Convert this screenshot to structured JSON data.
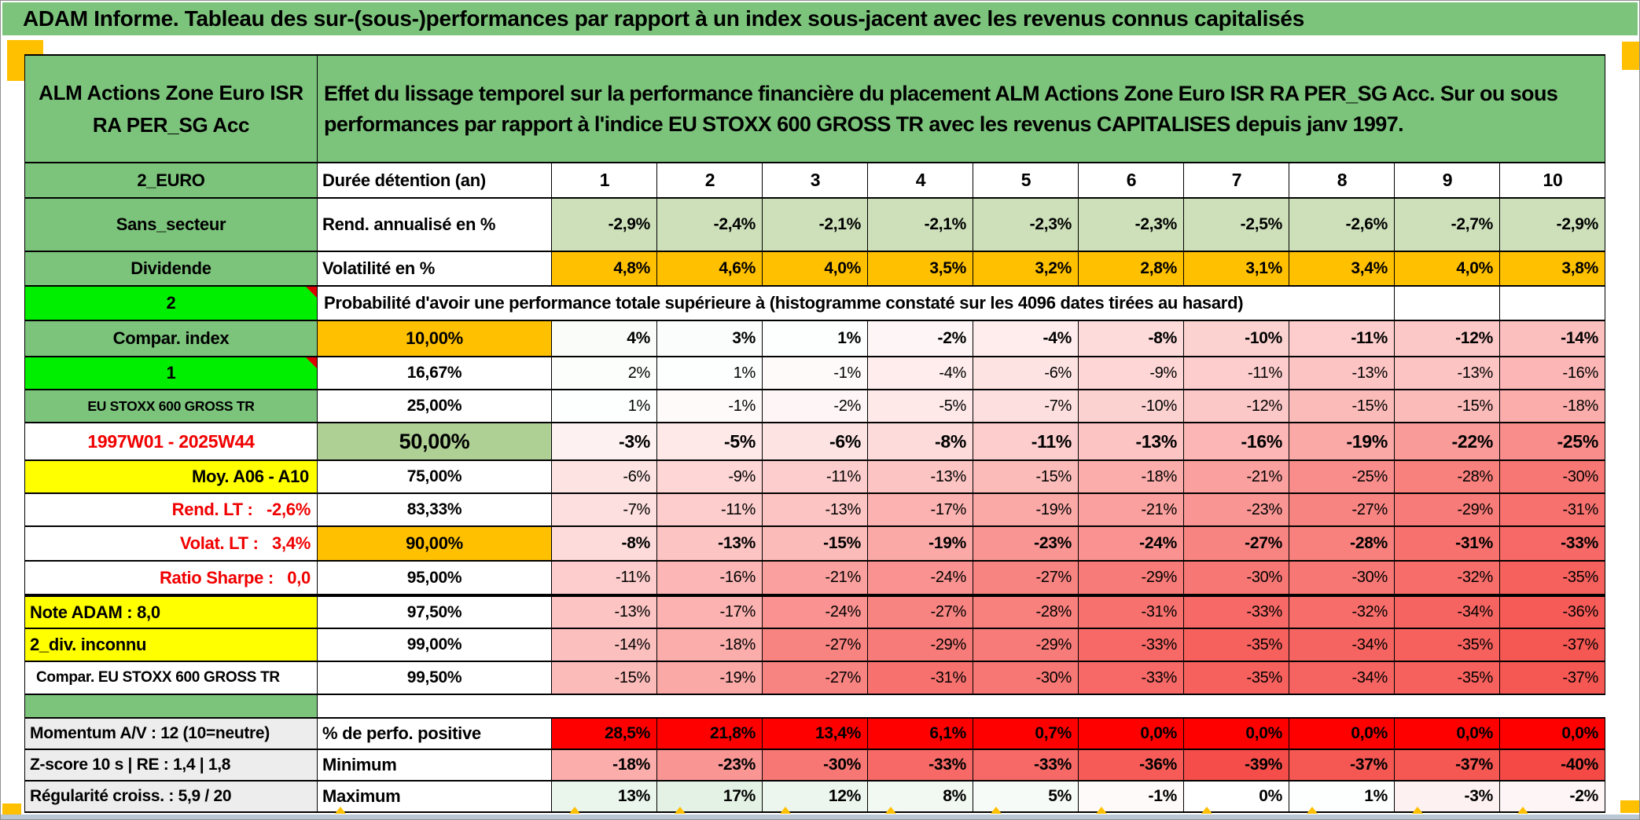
{
  "title_bar": {
    "text": "ADAM Informe. Tableau des sur-(sous-)performances par rapport à un index sous-jacent avec les revenus connus capitalisés"
  },
  "header": {
    "fund_name": "ALM Actions Zone Euro ISR RA PER_SG Acc",
    "description": "Effet du lissage temporel sur la performance financière du placement ALM Actions Zone Euro ISR RA PER_SG Acc. Sur ou sous performances par rapport à l'indice EU STOXX 600 GROSS TR avec les revenus CAPITALISES depuis janv 1997."
  },
  "colors": {
    "header_green": "#7cc47c",
    "bright_green": "#00ef00",
    "light_green_fill": "#cde0ba",
    "p50_green_fill": "#afd095",
    "orange": "#ffc000",
    "yellow": "#ffff00",
    "label_gray": "#ededed",
    "red_fill": "#fe0000",
    "red_text": "#f00000",
    "positive_scale_max": "#dff0e2",
    "negative_scale_max": "#f4403c"
  },
  "table": {
    "rows": [
      {
        "name": "durations",
        "left": {
          "text": "2_EURO",
          "style": "green"
        },
        "mid": {
          "text": "Durée détention (an)",
          "style": "label"
        },
        "cells": [
          "1",
          "2",
          "3",
          "4",
          "5",
          "6",
          "7",
          "8",
          "9",
          "10"
        ],
        "mode": "head"
      },
      {
        "name": "annual-return",
        "left": {
          "text": "Sans_secteur",
          "style": "green"
        },
        "mid": {
          "text": "Rend. annualisé en %",
          "style": "label"
        },
        "cells": [
          "-2,9%",
          "-2,4%",
          "-2,1%",
          "-2,1%",
          "-2,3%",
          "-2,3%",
          "-2,5%",
          "-2,6%",
          "-2,7%",
          "-2,9%"
        ],
        "mode": "lightgreen"
      },
      {
        "name": "volatility",
        "left": {
          "text": "Dividende",
          "style": "green"
        },
        "mid": {
          "text": "Volatilité en %",
          "style": "label"
        },
        "cells": [
          "4,8%",
          "4,6%",
          "4,0%",
          "3,5%",
          "3,2%",
          "2,8%",
          "3,1%",
          "3,4%",
          "4,0%",
          "3,8%"
        ],
        "mode": "orange"
      },
      {
        "name": "probability-title",
        "left": {
          "text": "2",
          "style": "bright",
          "corner": true
        },
        "span": "Probabilité d'avoir une performance totale supérieure à (histogramme constaté sur les 4096 dates tirées au hasard)",
        "trailing_empty": 2
      },
      {
        "name": "pct-10",
        "left": {
          "text": "Compar. index",
          "style": "green"
        },
        "mid": {
          "text": "10,00%",
          "style": "orange"
        },
        "values": [
          4,
          3,
          1,
          -2,
          -4,
          -8,
          -10,
          -11,
          -12,
          -14
        ],
        "emphasis": true
      },
      {
        "name": "pct-16",
        "left": {
          "text": "1",
          "style": "bright",
          "corner": true
        },
        "mid": {
          "text": "16,67%",
          "style": "plain"
        },
        "values": [
          2,
          1,
          -1,
          -4,
          -6,
          -9,
          -11,
          -13,
          -13,
          -16
        ]
      },
      {
        "name": "pct-25",
        "left": {
          "text": "EU STOXX 600 GROSS TR",
          "style": "green-small"
        },
        "mid": {
          "text": "25,00%",
          "style": "plain"
        },
        "values": [
          1,
          -1,
          -2,
          -5,
          -7,
          -10,
          -12,
          -15,
          -15,
          -18
        ]
      },
      {
        "name": "pct-50",
        "left": {
          "text": "1997W01 - 2025W44",
          "style": "red-center"
        },
        "mid": {
          "text": "50,00%",
          "style": "green-big"
        },
        "values": [
          -3,
          -5,
          -6,
          -8,
          -11,
          -13,
          -16,
          -19,
          -22,
          -25
        ],
        "emphasis": true,
        "big": true
      },
      {
        "name": "pct-75",
        "left": {
          "text": "Moy. A06 - A10",
          "style": "yellow-right"
        },
        "mid": {
          "text": "75,00%",
          "style": "plain"
        },
        "values": [
          -6,
          -9,
          -11,
          -13,
          -15,
          -18,
          -21,
          -25,
          -28,
          -30
        ]
      },
      {
        "name": "pct-83",
        "left": {
          "text": "Rend. LT :   -2,6%",
          "style": "red-right"
        },
        "mid": {
          "text": "83,33%",
          "style": "plain"
        },
        "values": [
          -7,
          -11,
          -13,
          -17,
          -19,
          -21,
          -23,
          -27,
          -29,
          -31
        ]
      },
      {
        "name": "pct-90",
        "left": {
          "text": "Volat. LT :   3,4%",
          "style": "red-right"
        },
        "mid": {
          "text": "90,00%",
          "style": "orange"
        },
        "values": [
          -8,
          -13,
          -15,
          -19,
          -23,
          -24,
          -27,
          -28,
          -31,
          -33
        ],
        "emphasis": true
      },
      {
        "name": "pct-95",
        "left": {
          "text": "Ratio Sharpe :   0,0",
          "style": "red-right"
        },
        "mid": {
          "text": "95,00%",
          "style": "plain"
        },
        "values": [
          -11,
          -16,
          -21,
          -24,
          -27,
          -29,
          -30,
          -30,
          -32,
          -35
        ],
        "thick_bottom": true
      },
      {
        "name": "pct-97",
        "left": {
          "text": "Note ADAM : 8,0",
          "style": "yellow-left"
        },
        "mid": {
          "text": "97,50%",
          "style": "plain"
        },
        "values": [
          -13,
          -17,
          -24,
          -27,
          -28,
          -31,
          -33,
          -32,
          -34,
          -36
        ]
      },
      {
        "name": "pct-99",
        "left": {
          "text": "2_div. inconnu",
          "style": "yellow-left"
        },
        "mid": {
          "text": "99,00%",
          "style": "plain"
        },
        "values": [
          -14,
          -18,
          -27,
          -29,
          -29,
          -33,
          -35,
          -34,
          -35,
          -37
        ]
      },
      {
        "name": "pct-995",
        "left": {
          "text": "Compar. EU STOXX 600 GROSS TR",
          "style": "white-left"
        },
        "mid": {
          "text": "99,50%",
          "style": "plain"
        },
        "values": [
          -15,
          -19,
          -27,
          -31,
          -30,
          -33,
          -35,
          -34,
          -35,
          -37
        ]
      },
      {
        "name": "spacer",
        "spacer": true
      },
      {
        "name": "pct-positive",
        "left": {
          "text": "Momentum A/V : 12 (10=neutre)",
          "style": "gray-left"
        },
        "mid": {
          "text": "% de perfo. positive",
          "style": "label"
        },
        "cells": [
          "28,5%",
          "21,8%",
          "13,4%",
          "6,1%",
          "0,7%",
          "0,0%",
          "0,0%",
          "0,0%",
          "0,0%",
          "0,0%"
        ],
        "mode": "red"
      },
      {
        "name": "minimum",
        "left": {
          "text": "Z-score 10 s | RE : 1,4 | 1,8",
          "style": "gray-left"
        },
        "mid": {
          "text": "Minimum",
          "style": "label"
        },
        "values": [
          -18,
          -23,
          -30,
          -33,
          -33,
          -36,
          -39,
          -37,
          -37,
          -40
        ],
        "emphasis": true
      },
      {
        "name": "maximum",
        "left": {
          "text": "Régularité croiss. : 5,9 / 20",
          "style": "gray-left"
        },
        "mid": {
          "text": "Maximum",
          "style": "label"
        },
        "values": [
          13,
          17,
          12,
          8,
          5,
          -1,
          0,
          1,
          -3,
          -2
        ],
        "emphasis": true
      }
    ]
  }
}
